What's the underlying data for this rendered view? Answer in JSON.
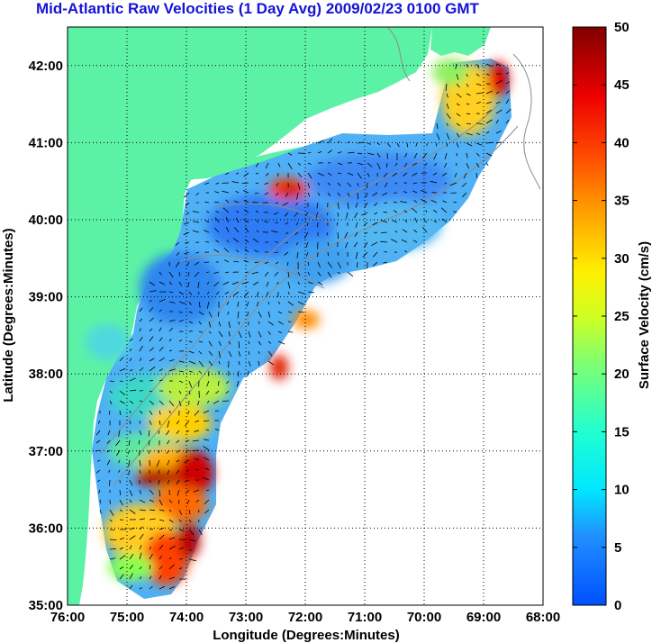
{
  "title": "Mid-Atlantic Raw Velocities (1 Day Avg) 2009/02/23 0100 GMT",
  "axes": {
    "xlabel": "Longitude (Degrees:Minutes)",
    "ylabel": "Latitude (Degrees:Minutes)",
    "x_ticks": [
      "76:00",
      "75:00",
      "74:00",
      "73:00",
      "72:00",
      "71:00",
      "70:00",
      "69:00",
      "68:00"
    ],
    "y_ticks": [
      "35:00",
      "36:00",
      "37:00",
      "38:00",
      "39:00",
      "40:00",
      "41:00",
      "42:00"
    ],
    "x_range": [
      -76,
      -68
    ],
    "y_range": [
      35,
      42.5
    ],
    "grid": "dotted"
  },
  "colorbar": {
    "label": "Surface Velocity (cm/s)",
    "ticks": [
      "0",
      "5",
      "10",
      "15",
      "20",
      "25",
      "30",
      "35",
      "40",
      "45",
      "50"
    ],
    "range": [
      0,
      50
    ],
    "colormap": "jet"
  },
  "colors": {
    "land": "#5cf2a6",
    "title": "#1414d6",
    "grid": "#000000",
    "contour": "#8c8c8c"
  }
}
